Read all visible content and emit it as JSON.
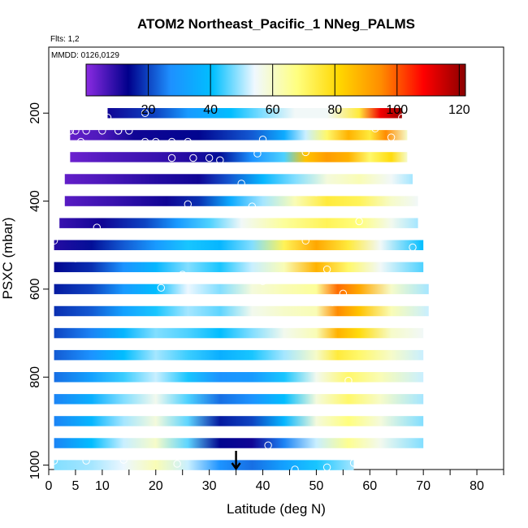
{
  "chart_data": {
    "type": "heatmap",
    "title": "ATOM2 Northeast_Pacific_1 NNeg_PALMS",
    "annotations": {
      "flights": "Flts: 1,2",
      "dates": "MMDD: 0126,0129"
    },
    "xlabel": "Latitude (deg N)",
    "ylabel": "PSXC (mbar)",
    "x_ticks": [
      0,
      5,
      10,
      20,
      30,
      40,
      50,
      60,
      70,
      80
    ],
    "x_minor_ticks": [
      15,
      25,
      35,
      45,
      55,
      65,
      75,
      85
    ],
    "xlim": [
      0,
      85
    ],
    "y_ticks": [
      200,
      400,
      600,
      800,
      1000
    ],
    "ylim": [
      1010,
      50
    ],
    "y_reversed": true,
    "colorbar": {
      "ticks": [
        20,
        40,
        60,
        80,
        100,
        120
      ],
      "range": [
        0,
        122
      ],
      "colors": [
        "#8b2be2",
        "#00008b",
        "#1e90ff",
        "#00bfff",
        "#f0f8ff",
        "#ffff80",
        "#ffd700",
        "#ff8c00",
        "#ff0000",
        "#8b0000"
      ]
    },
    "marker": {
      "latitude": 35,
      "label": "arrow"
    },
    "rows": [
      {
        "p": 200,
        "lat_range": [
          11,
          66
        ],
        "stops": [
          [
            11,
            12
          ],
          [
            20,
            20
          ],
          [
            26,
            30
          ],
          [
            34,
            40
          ],
          [
            40,
            48
          ],
          [
            46,
            55
          ],
          [
            52,
            55
          ],
          [
            58,
            75
          ],
          [
            62,
            110
          ],
          [
            66,
            120
          ]
        ]
      },
      {
        "p": 250,
        "lat_range": [
          4,
          67
        ],
        "stops": [
          [
            4,
            4
          ],
          [
            10,
            6
          ],
          [
            16,
            12
          ],
          [
            28,
            14
          ],
          [
            38,
            22
          ],
          [
            44,
            35
          ],
          [
            48,
            52
          ],
          [
            52,
            70
          ],
          [
            56,
            88
          ],
          [
            60,
            75
          ],
          [
            63,
            95
          ],
          [
            67,
            60
          ]
        ]
      },
      {
        "p": 300,
        "lat_range": [
          4,
          67
        ],
        "stops": [
          [
            4,
            3
          ],
          [
            12,
            6
          ],
          [
            20,
            8
          ],
          [
            26,
            10
          ],
          [
            32,
            15
          ],
          [
            38,
            28
          ],
          [
            44,
            45
          ],
          [
            48,
            85
          ],
          [
            52,
            92
          ],
          [
            56,
            88
          ],
          [
            60,
            70
          ],
          [
            64,
            80
          ],
          [
            67,
            60
          ]
        ]
      },
      {
        "p": 350,
        "lat_range": [
          3,
          68
        ],
        "stops": [
          [
            3,
            4
          ],
          [
            10,
            6
          ],
          [
            20,
            10
          ],
          [
            28,
            12
          ],
          [
            34,
            22
          ],
          [
            40,
            38
          ],
          [
            46,
            48
          ],
          [
            52,
            58
          ],
          [
            58,
            62
          ],
          [
            64,
            55
          ],
          [
            68,
            50
          ]
        ]
      },
      {
        "p": 400,
        "lat_range": [
          3,
          69
        ],
        "stops": [
          [
            3,
            5
          ],
          [
            12,
            8
          ],
          [
            22,
            12
          ],
          [
            28,
            18
          ],
          [
            34,
            35
          ],
          [
            40,
            50
          ],
          [
            46,
            62
          ],
          [
            52,
            75
          ],
          [
            58,
            72
          ],
          [
            64,
            60
          ],
          [
            69,
            55
          ]
        ]
      },
      {
        "p": 450,
        "lat_range": [
          2,
          69
        ],
        "stops": [
          [
            2,
            8
          ],
          [
            10,
            12
          ],
          [
            18,
            20
          ],
          [
            24,
            30
          ],
          [
            30,
            45
          ],
          [
            36,
            55
          ],
          [
            44,
            65
          ],
          [
            52,
            72
          ],
          [
            58,
            68
          ],
          [
            64,
            56
          ],
          [
            69,
            50
          ]
        ]
      },
      {
        "p": 500,
        "lat_range": [
          1,
          70
        ],
        "stops": [
          [
            1,
            10
          ],
          [
            8,
            15
          ],
          [
            14,
            22
          ],
          [
            20,
            30
          ],
          [
            26,
            42
          ],
          [
            32,
            38
          ],
          [
            38,
            48
          ],
          [
            44,
            72
          ],
          [
            50,
            90
          ],
          [
            56,
            75
          ],
          [
            62,
            55
          ],
          [
            70,
            40
          ]
        ]
      },
      {
        "p": 550,
        "lat_range": [
          1,
          70
        ],
        "stops": [
          [
            1,
            14
          ],
          [
            8,
            18
          ],
          [
            14,
            28
          ],
          [
            20,
            38
          ],
          [
            26,
            48
          ],
          [
            32,
            42
          ],
          [
            38,
            52
          ],
          [
            44,
            62
          ],
          [
            50,
            88
          ],
          [
            56,
            70
          ],
          [
            62,
            55
          ],
          [
            70,
            45
          ]
        ]
      },
      {
        "p": 600,
        "lat_range": [
          1,
          71
        ],
        "stops": [
          [
            1,
            16
          ],
          [
            8,
            20
          ],
          [
            14,
            30
          ],
          [
            20,
            40
          ],
          [
            26,
            54
          ],
          [
            32,
            48
          ],
          [
            38,
            58
          ],
          [
            44,
            62
          ],
          [
            50,
            65
          ],
          [
            54,
            98
          ],
          [
            58,
            90
          ],
          [
            64,
            60
          ],
          [
            71,
            50
          ]
        ]
      },
      {
        "p": 650,
        "lat_range": [
          1,
          71
        ],
        "stops": [
          [
            1,
            18
          ],
          [
            8,
            22
          ],
          [
            14,
            32
          ],
          [
            20,
            42
          ],
          [
            26,
            50
          ],
          [
            32,
            46
          ],
          [
            38,
            56
          ],
          [
            44,
            60
          ],
          [
            50,
            62
          ],
          [
            54,
            95
          ],
          [
            58,
            85
          ],
          [
            64,
            62
          ],
          [
            71,
            52
          ]
        ]
      },
      {
        "p": 700,
        "lat_range": [
          1,
          70
        ],
        "stops": [
          [
            1,
            20
          ],
          [
            8,
            26
          ],
          [
            14,
            38
          ],
          [
            20,
            48
          ],
          [
            26,
            45
          ],
          [
            32,
            40
          ],
          [
            38,
            48
          ],
          [
            44,
            56
          ],
          [
            50,
            62
          ],
          [
            54,
            88
          ],
          [
            58,
            80
          ],
          [
            64,
            60
          ],
          [
            70,
            55
          ]
        ]
      },
      {
        "p": 750,
        "lat_range": [
          1,
          70
        ],
        "stops": [
          [
            1,
            22
          ],
          [
            8,
            28
          ],
          [
            14,
            40
          ],
          [
            20,
            50
          ],
          [
            26,
            44
          ],
          [
            32,
            36
          ],
          [
            38,
            42
          ],
          [
            44,
            50
          ],
          [
            50,
            60
          ],
          [
            54,
            75
          ],
          [
            58,
            70
          ],
          [
            64,
            60
          ],
          [
            70,
            52
          ]
        ]
      },
      {
        "p": 800,
        "lat_range": [
          1,
          70
        ],
        "stops": [
          [
            1,
            24
          ],
          [
            8,
            32
          ],
          [
            14,
            44
          ],
          [
            20,
            52
          ],
          [
            26,
            42
          ],
          [
            32,
            28
          ],
          [
            38,
            30
          ],
          [
            44,
            42
          ],
          [
            50,
            56
          ],
          [
            56,
            70
          ],
          [
            62,
            62
          ],
          [
            70,
            52
          ]
        ]
      },
      {
        "p": 850,
        "lat_range": [
          1,
          70
        ],
        "stops": [
          [
            1,
            26
          ],
          [
            8,
            36
          ],
          [
            14,
            48
          ],
          [
            20,
            56
          ],
          [
            26,
            45
          ],
          [
            32,
            24
          ],
          [
            38,
            28
          ],
          [
            44,
            40
          ],
          [
            50,
            58
          ],
          [
            56,
            70
          ],
          [
            62,
            60
          ],
          [
            70,
            50
          ]
        ]
      },
      {
        "p": 900,
        "lat_range": [
          1,
          70
        ],
        "stops": [
          [
            1,
            26
          ],
          [
            8,
            38
          ],
          [
            14,
            50
          ],
          [
            20,
            58
          ],
          [
            26,
            46
          ],
          [
            32,
            16
          ],
          [
            38,
            20
          ],
          [
            44,
            38
          ],
          [
            50,
            58
          ],
          [
            56,
            68
          ],
          [
            62,
            58
          ],
          [
            70,
            48
          ]
        ]
      },
      {
        "p": 950,
        "lat_range": [
          1,
          70
        ],
        "stops": [
          [
            1,
            26
          ],
          [
            8,
            40
          ],
          [
            14,
            52
          ],
          [
            20,
            60
          ],
          [
            26,
            46
          ],
          [
            32,
            14
          ],
          [
            38,
            12
          ],
          [
            44,
            26
          ],
          [
            50,
            52
          ],
          [
            56,
            66
          ],
          [
            62,
            56
          ],
          [
            70,
            48
          ]
        ]
      },
      {
        "p": 1000,
        "lat_range": [
          1,
          57
        ],
        "stops": [
          [
            1,
            48
          ],
          [
            8,
            50
          ],
          [
            14,
            54
          ],
          [
            20,
            62
          ],
          [
            26,
            52
          ],
          [
            32,
            28
          ],
          [
            38,
            24
          ],
          [
            44,
            32
          ],
          [
            50,
            42
          ],
          [
            57,
            50
          ]
        ]
      }
    ],
    "points": [
      [
        11,
        210
      ],
      [
        18,
        200
      ],
      [
        30,
        183
      ],
      [
        40,
        260
      ],
      [
        48,
        289
      ],
      [
        60,
        230
      ],
      [
        61,
        235
      ],
      [
        64,
        255
      ],
      [
        66,
        210
      ],
      [
        68,
        232
      ],
      [
        4,
        240
      ],
      [
        5,
        240
      ],
      [
        7,
        240
      ],
      [
        10,
        240
      ],
      [
        13,
        240
      ],
      [
        15,
        240
      ],
      [
        18,
        265
      ],
      [
        20,
        265
      ],
      [
        23,
        265
      ],
      [
        26,
        265
      ],
      [
        23,
        302
      ],
      [
        27,
        302
      ],
      [
        30,
        302
      ],
      [
        32,
        307
      ],
      [
        37,
        277
      ],
      [
        38,
        277
      ],
      [
        39,
        292
      ],
      [
        40,
        277
      ],
      [
        13,
        240
      ],
      [
        6,
        265
      ],
      [
        36,
        360
      ],
      [
        26,
        407
      ],
      [
        38,
        412
      ],
      [
        50,
        380
      ],
      [
        58,
        446
      ],
      [
        9,
        460
      ],
      [
        13,
        477
      ],
      [
        16,
        477
      ],
      [
        20,
        477
      ],
      [
        1,
        480
      ],
      [
        1,
        490
      ],
      [
        46,
        520
      ],
      [
        48,
        490
      ],
      [
        52,
        555
      ],
      [
        53,
        630
      ],
      [
        55,
        610
      ],
      [
        48,
        520
      ],
      [
        68,
        505
      ],
      [
        71,
        575
      ],
      [
        40,
        582
      ],
      [
        5,
        530
      ],
      [
        21,
        597
      ],
      [
        25,
        567
      ],
      [
        56,
        808
      ],
      [
        70,
        925
      ],
      [
        41,
        955
      ],
      [
        1,
        990
      ],
      [
        7,
        990
      ],
      [
        14,
        988
      ],
      [
        24,
        997
      ],
      [
        46,
        1010
      ],
      [
        52,
        1005
      ],
      [
        57,
        995
      ]
    ]
  }
}
